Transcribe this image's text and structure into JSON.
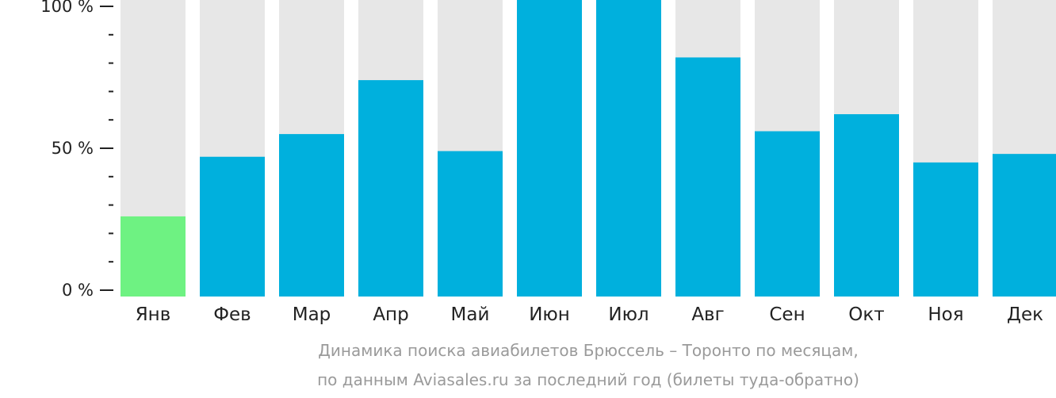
{
  "chart_data": {
    "type": "bar",
    "categories": [
      "Янв",
      "Фев",
      "Мар",
      "Апр",
      "Май",
      "Июн",
      "Июл",
      "Авг",
      "Сен",
      "Окт",
      "Ноя",
      "Дек"
    ],
    "values": [
      26,
      47,
      55,
      74,
      49,
      103,
      105,
      82,
      56,
      62,
      45,
      48
    ],
    "highlight_index": 0,
    "ylim": [
      0,
      100
    ],
    "ytick_labels": [
      "0 %",
      "50 %",
      "100 %"
    ],
    "colors": {
      "bar": "#00b0dd",
      "highlight": "#6ef282",
      "background_bar": "#e7e7e7",
      "axis": "#222222"
    },
    "xlabel": "",
    "ylabel": ""
  },
  "caption": {
    "line1": "Динамика поиска авиабилетов Брюссель – Торонто по месяцам,",
    "line2": "по данным Aviasales.ru за последний год (билеты туда-обратно)"
  }
}
